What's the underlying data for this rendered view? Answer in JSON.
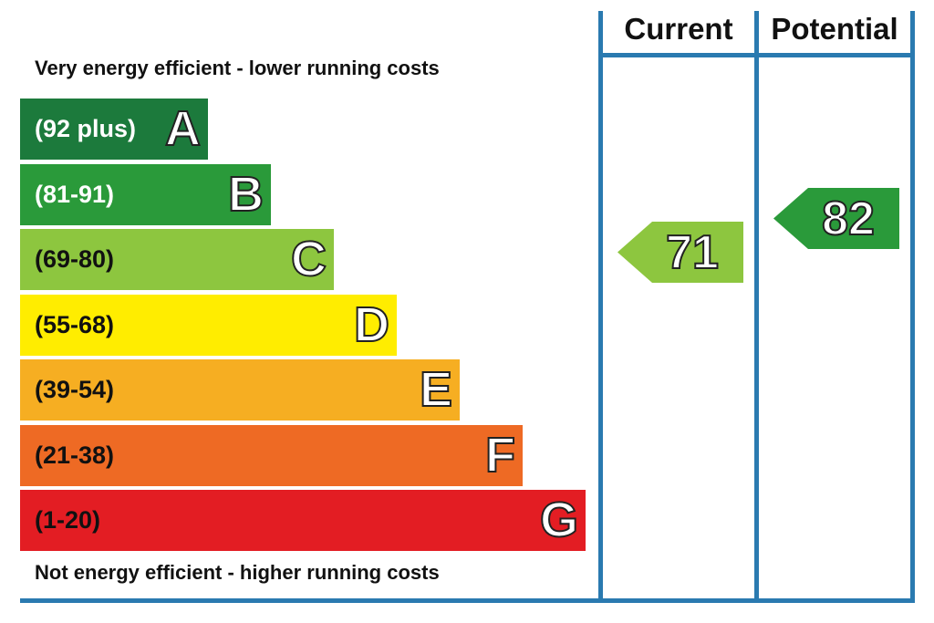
{
  "chart_data": {
    "type": "bar",
    "top_caption": "Very energy efficient - lower running costs",
    "bottom_caption": "Not energy efficient - higher running costs",
    "columns": [
      "Current",
      "Potential"
    ],
    "bands": [
      {
        "letter": "A",
        "range": "(92 plus)",
        "color": "#1c7a3c",
        "text_color": "#ffffff"
      },
      {
        "letter": "B",
        "range": "(81-91)",
        "color": "#2a9a3a",
        "text_color": "#ffffff"
      },
      {
        "letter": "C",
        "range": "(69-80)",
        "color": "#8dc63f",
        "text_color": "#111111"
      },
      {
        "letter": "D",
        "range": "(55-68)",
        "color": "#ffed00",
        "text_color": "#111111"
      },
      {
        "letter": "E",
        "range": "(39-54)",
        "color": "#f6ae22",
        "text_color": "#111111"
      },
      {
        "letter": "F",
        "range": "(21-38)",
        "color": "#ee6a24",
        "text_color": "#111111"
      },
      {
        "letter": "G",
        "range": "(1-20)",
        "color": "#e31d23",
        "text_color": "#111111"
      }
    ],
    "ratings": [
      {
        "column": "Current",
        "value": 71,
        "band": "C",
        "color": "#8dc63f"
      },
      {
        "column": "Potential",
        "value": 82,
        "band": "B",
        "color": "#2a9a3a"
      }
    ]
  }
}
